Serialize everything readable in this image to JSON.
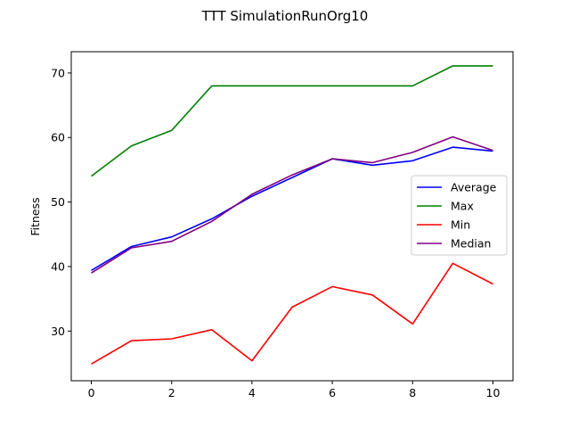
{
  "chart_data": {
    "type": "line",
    "title": "TTT SimulationRunOrg10",
    "xlabel": "",
    "ylabel": "Fitness",
    "x": [
      0,
      1,
      2,
      3,
      4,
      5,
      6,
      7,
      8,
      9,
      10
    ],
    "xlim": [
      -0.5,
      10.5
    ],
    "ylim": [
      22.3,
      73.3
    ],
    "xticks": [
      0,
      2,
      4,
      6,
      8,
      10
    ],
    "yticks": [
      30,
      40,
      50,
      60,
      70
    ],
    "grid": false,
    "legend_position": "center-right",
    "series": [
      {
        "name": "Average",
        "color": "#0000ff",
        "values": [
          39.4,
          43.1,
          44.6,
          47.4,
          50.9,
          53.8,
          56.7,
          55.7,
          56.4,
          58.5,
          57.9
        ]
      },
      {
        "name": "Max",
        "color": "#008000",
        "values": [
          54.0,
          58.7,
          61.1,
          68.0,
          68.0,
          68.0,
          68.0,
          68.0,
          68.0,
          71.1,
          71.1
        ]
      },
      {
        "name": "Min",
        "color": "#ff0000",
        "values": [
          24.9,
          28.5,
          28.8,
          30.2,
          25.4,
          33.7,
          36.9,
          35.6,
          31.1,
          40.5,
          37.3
        ]
      },
      {
        "name": "Median",
        "color": "#800080",
        "values": [
          39.0,
          42.9,
          43.9,
          47.0,
          51.2,
          54.2,
          56.7,
          56.1,
          57.7,
          60.1,
          58.0
        ]
      }
    ]
  }
}
